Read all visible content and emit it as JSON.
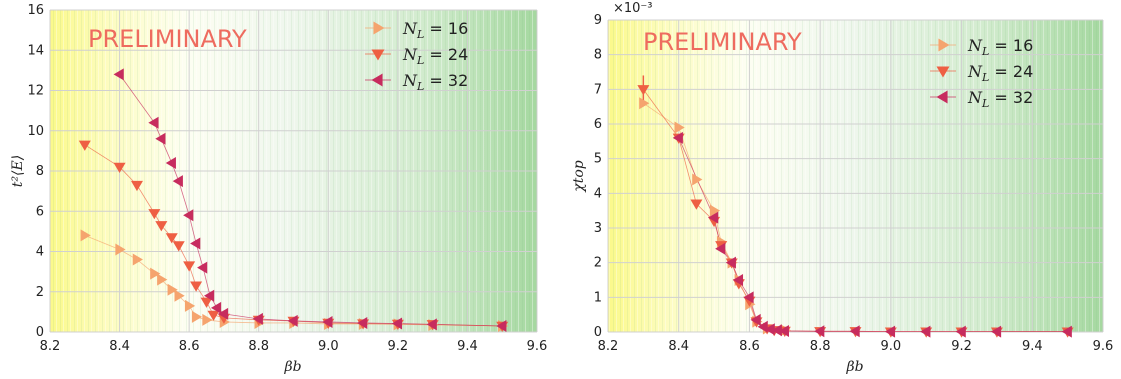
{
  "colors": {
    "N16": "#f5a46e",
    "N24": "#ee5f43",
    "N32": "#c72c5e",
    "watermark": "#ee6b5f",
    "grid": "#d0d0d0"
  },
  "chart_data": [
    {
      "type": "scatter",
      "ylabel": "t²⟨E⟩",
      "xlabel": "βb",
      "watermark": "PRELIMINARY",
      "xlim": [
        8.2,
        9.6
      ],
      "ylim": [
        0,
        16
      ],
      "xticks": [
        "8.2",
        "8.4",
        "8.6",
        "8.8",
        "9.0",
        "9.2",
        "9.4",
        "9.6"
      ],
      "yticks": [
        "0",
        "2",
        "4",
        "6",
        "8",
        "10",
        "12",
        "14",
        "16"
      ],
      "grid": true,
      "legend_position": "top-right",
      "series": [
        {
          "name": "NL = 16",
          "value_label": "16",
          "marker": "triangle-right",
          "x": [
            8.3,
            8.4,
            8.45,
            8.5,
            8.52,
            8.55,
            8.57,
            8.6,
            8.62,
            8.65,
            8.7,
            8.8,
            8.9,
            9.0,
            9.1,
            9.2,
            9.3,
            9.5
          ],
          "y": [
            4.8,
            4.1,
            3.6,
            2.9,
            2.6,
            2.1,
            1.8,
            1.3,
            0.75,
            0.6,
            0.5,
            0.45,
            0.45,
            0.4,
            0.4,
            0.38,
            0.35,
            0.3
          ]
        },
        {
          "name": "NL = 24",
          "value_label": "24",
          "marker": "triangle-down",
          "x": [
            8.3,
            8.4,
            8.45,
            8.5,
            8.52,
            8.55,
            8.57,
            8.6,
            8.62,
            8.65,
            8.67,
            8.7,
            8.8,
            8.9,
            9.0,
            9.1,
            9.2,
            9.3,
            9.5
          ],
          "y": [
            9.3,
            8.2,
            7.3,
            5.9,
            5.3,
            4.7,
            4.3,
            3.3,
            2.3,
            1.5,
            0.85,
            0.7,
            0.6,
            0.55,
            0.45,
            0.42,
            0.4,
            0.38,
            0.3
          ]
        },
        {
          "name": "NL = 32",
          "value_label": "32",
          "marker": "triangle-left",
          "x": [
            8.4,
            8.5,
            8.52,
            8.55,
            8.57,
            8.6,
            8.62,
            8.64,
            8.66,
            8.68,
            8.7,
            8.8,
            8.9,
            9.0,
            9.1,
            9.2,
            9.3,
            9.5
          ],
          "y": [
            12.8,
            10.4,
            9.6,
            8.4,
            7.5,
            5.8,
            4.4,
            3.2,
            1.8,
            1.2,
            0.9,
            0.65,
            0.55,
            0.5,
            0.45,
            0.42,
            0.38,
            0.3
          ]
        }
      ]
    },
    {
      "type": "scatter",
      "ylabel": "χtop",
      "xlabel": "βb",
      "watermark": "PRELIMINARY",
      "scale_label": "×10⁻³",
      "xlim": [
        8.2,
        9.6
      ],
      "ylim": [
        0,
        9
      ],
      "xticks": [
        "8.2",
        "8.4",
        "8.6",
        "8.8",
        "9.0",
        "9.2",
        "9.4",
        "9.6"
      ],
      "yticks": [
        "0",
        "1",
        "2",
        "3",
        "4",
        "5",
        "6",
        "7",
        "8",
        "9"
      ],
      "grid": true,
      "legend_position": "top-right",
      "series": [
        {
          "name": "NL = 16",
          "value_label": "16",
          "marker": "triangle-right",
          "x": [
            8.3,
            8.4,
            8.45,
            8.5,
            8.52,
            8.55,
            8.57,
            8.6,
            8.62,
            8.65,
            8.7
          ],
          "y": [
            6.6,
            5.9,
            4.4,
            3.5,
            2.6,
            2.0,
            1.5,
            0.8,
            0.3,
            0.1,
            0.05
          ]
        },
        {
          "name": "NL = 24",
          "value_label": "24",
          "marker": "triangle-down",
          "x": [
            8.3,
            8.4,
            8.45,
            8.5,
            8.52,
            8.55,
            8.57,
            8.6,
            8.62,
            8.65,
            8.67,
            8.7,
            8.8,
            8.9,
            9.0,
            9.1,
            9.2,
            9.3,
            9.5
          ],
          "y": [
            7.0,
            5.6,
            3.7,
            3.2,
            2.5,
            2.0,
            1.4,
            0.9,
            0.3,
            0.1,
            0.05,
            0.03,
            0.02,
            0.02,
            0.01,
            0.01,
            0.01,
            0.01,
            0.01
          ],
          "yerr_at_first": 0.4
        },
        {
          "name": "NL = 32",
          "value_label": "32",
          "marker": "triangle-left",
          "x": [
            8.4,
            8.5,
            8.52,
            8.55,
            8.57,
            8.6,
            8.62,
            8.64,
            8.66,
            8.68,
            8.7,
            8.8,
            8.9,
            9.0,
            9.1,
            9.2,
            9.3,
            9.5
          ],
          "y": [
            5.6,
            3.3,
            2.4,
            2.0,
            1.5,
            1.0,
            0.35,
            0.15,
            0.08,
            0.05,
            0.03,
            0.02,
            0.02,
            0.01,
            0.01,
            0.01,
            0.01,
            0.01
          ]
        }
      ]
    }
  ]
}
